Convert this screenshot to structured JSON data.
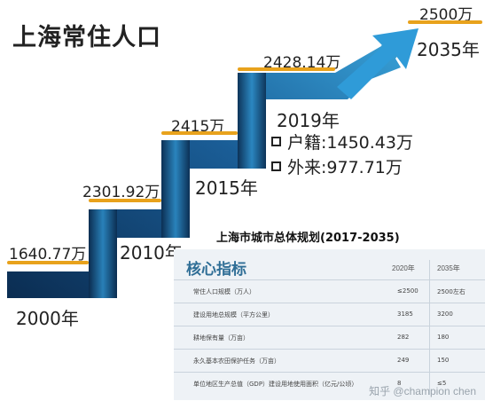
{
  "title": "上海常住人口",
  "chart_data": {
    "type": "line",
    "x": [
      "2000年",
      "2010年",
      "2015年",
      "2019年",
      "2035年"
    ],
    "values": [
      1640.77,
      2301.92,
      2415,
      2428.14,
      2500
    ],
    "value_labels": [
      "1640.77万",
      "2301.92万",
      "2415万",
      "2428.14万",
      "2500万"
    ],
    "annotations": [
      "户籍:1450.43万",
      "外来:977.71万"
    ]
  },
  "table": {
    "title": "上海市城市总体规划(2017-2035)",
    "heading": "核心指标",
    "columns": [
      "2020年",
      "2035年"
    ],
    "rows": [
      {
        "label": "常住人口规模（万人）",
        "v2020": "≤2500",
        "v2035": "2500左右"
      },
      {
        "label": "建设用地总规模（平方公里）",
        "v2020": "3185",
        "v2035": "3200"
      },
      {
        "label": "耕地保有量（万亩）",
        "v2020": "282",
        "v2035": "180"
      },
      {
        "label": "永久基本农田保护任务（万亩）",
        "v2020": "249",
        "v2035": "150"
      },
      {
        "label": "单位地区生产总值（GDP）建设用地使用面积（亿元/公顷）",
        "v2020": "8",
        "v2035": "≤5"
      }
    ]
  },
  "watermark": "知乎 @champion chen",
  "colors": {
    "stair_dark": "#0b2d52",
    "stair_light": "#2d8cc6",
    "underline": "#e8a21c",
    "heading": "#2f6e96"
  }
}
